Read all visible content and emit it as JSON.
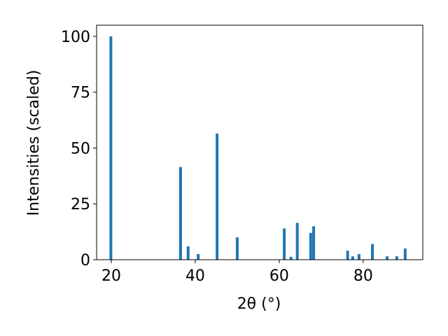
{
  "chart_data": {
    "type": "bar",
    "xlabel": "2θ (°)",
    "ylabel": "Intensities (scaled)",
    "x": [
      19.9,
      36.5,
      38.3,
      40.7,
      45.2,
      50.0,
      61.2,
      62.8,
      64.3,
      67.5,
      68.2,
      76.3,
      77.5,
      79.0,
      82.2,
      85.7,
      88.0,
      90.0
    ],
    "values": [
      100,
      41.5,
      6,
      2.5,
      56.5,
      10,
      14,
      1.3,
      16.5,
      12,
      15,
      4,
      1.5,
      2.5,
      7,
      1.5,
      1.5,
      5
    ],
    "color": "#1f77b4",
    "xlim": [
      16.5,
      94.2
    ],
    "ylim": [
      0,
      105
    ],
    "xticks": [
      20,
      40,
      60,
      80
    ],
    "yticks": [
      0,
      25,
      50,
      75,
      100
    ]
  }
}
